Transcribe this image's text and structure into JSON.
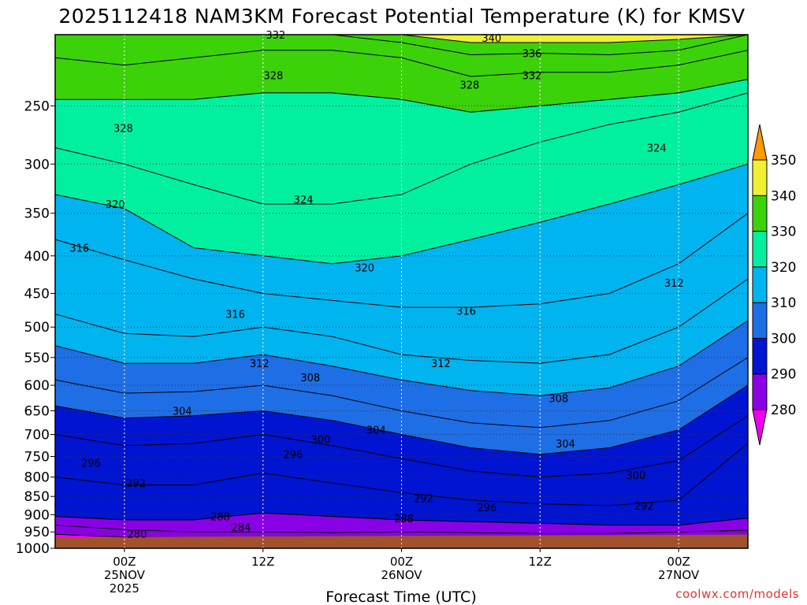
{
  "chart_data": {
    "type": "time-height contour",
    "title": "2025112418 NAM3KM Forecast Potential Temperature (K) for KMSV",
    "xlabel": "Forecast Time (UTC)",
    "ylabel": "",
    "y_scale": "log-pressure (inverted)",
    "y_ticks": [
      250,
      300,
      350,
      400,
      450,
      500,
      550,
      600,
      650,
      700,
      750,
      800,
      850,
      900,
      950,
      1000
    ],
    "ylim": [
      1000,
      200
    ],
    "x_range_hours": [
      -6,
      54
    ],
    "x_ticks": [
      {
        "hour": 0,
        "line1": "00Z",
        "line2": "25NOV",
        "line3": "2025"
      },
      {
        "hour": 12,
        "line1": "12Z",
        "line2": "",
        "line3": ""
      },
      {
        "hour": 24,
        "line1": "00Z",
        "line2": "26NOV",
        "line3": ""
      },
      {
        "hour": 36,
        "line1": "12Z",
        "line2": "",
        "line3": ""
      },
      {
        "hour": 48,
        "line1": "00Z",
        "line2": "27NOV",
        "line3": ""
      }
    ],
    "grid": true,
    "colorbar": {
      "placement": "right",
      "levels": [
        280,
        290,
        300,
        310,
        320,
        330,
        340,
        350
      ],
      "colors": [
        "#8a00e6",
        "#0014d2",
        "#1e6ee6",
        "#00b4f0",
        "#00f0a0",
        "#3cd20a",
        "#f0f032"
      ],
      "under_color": "#f000f0",
      "over_color": "#ff9900"
    },
    "ground_color": "#a0522d",
    "x_hours": [
      -6,
      0,
      6,
      12,
      18,
      24,
      30,
      36,
      42,
      48,
      54
    ],
    "isentropes_hpa": [
      {
        "theta": 280,
        "p": [
          957,
          965,
          966,
          966,
          967,
          966,
          966,
          966,
          966,
          966,
          966
        ]
      },
      {
        "theta": 284,
        "p": [
          930,
          943,
          950,
          950,
          952,
          950,
          952,
          955,
          955,
          950,
          945
        ]
      },
      {
        "theta": 288,
        "p": [
          905,
          915,
          915,
          895,
          905,
          915,
          920,
          925,
          930,
          930,
          910
        ]
      },
      {
        "theta": 292,
        "p": [
          800,
          820,
          820,
          790,
          815,
          840,
          860,
          870,
          875,
          860,
          720
        ]
      },
      {
        "theta": 296,
        "p": [
          700,
          725,
          720,
          700,
          725,
          755,
          785,
          800,
          790,
          760,
          660
        ]
      },
      {
        "theta": 300,
        "p": [
          640,
          665,
          660,
          650,
          670,
          700,
          730,
          745,
          730,
          690,
          600
        ]
      },
      {
        "theta": 304,
        "p": [
          590,
          615,
          612,
          600,
          620,
          650,
          675,
          685,
          670,
          630,
          550
        ]
      },
      {
        "theta": 308,
        "p": [
          530,
          560,
          560,
          545,
          565,
          590,
          610,
          620,
          605,
          565,
          490
        ]
      },
      {
        "theta": 312,
        "p": [
          480,
          510,
          515,
          500,
          515,
          545,
          555,
          560,
          545,
          500,
          430
        ]
      },
      {
        "theta": 316,
        "p": [
          380,
          405,
          430,
          450,
          460,
          470,
          470,
          465,
          450,
          410,
          350
        ]
      },
      {
        "theta": 320,
        "p": [
          330,
          345,
          390,
          400,
          410,
          400,
          380,
          360,
          340,
          320,
          300
        ]
      },
      {
        "theta": 324,
        "p": [
          285,
          300,
          320,
          340,
          340,
          330,
          300,
          280,
          265,
          255,
          240
        ]
      },
      {
        "theta": 328,
        "p": [
          245,
          245,
          245,
          240,
          240,
          245,
          255,
          250,
          245,
          240,
          230
        ]
      },
      {
        "theta": 332,
        "p": [
          215,
          220,
          215,
          210,
          210,
          215,
          228,
          225,
          225,
          220,
          210
        ]
      },
      {
        "theta": 336,
        "p": [
          200,
          200,
          200,
          200,
          200,
          205,
          213,
          212,
          213,
          210,
          200
        ]
      },
      {
        "theta": 340,
        "p": [
          200,
          200,
          200,
          200,
          200,
          200,
          205,
          205,
          205,
          203,
          200
        ]
      }
    ],
    "contour_labels": [
      {
        "text": "332",
        "hour": 13.1,
        "p": 200
      },
      {
        "text": "340",
        "hour": 31.8,
        "p": 202
      },
      {
        "text": "336",
        "hour": 35.3,
        "p": 212
      },
      {
        "text": "332",
        "hour": 35.3,
        "p": 227
      },
      {
        "text": "328",
        "hour": 12.9,
        "p": 227
      },
      {
        "text": "328",
        "hour": 29.9,
        "p": 234
      },
      {
        "text": "328",
        "hour": -0.1,
        "p": 268
      },
      {
        "text": "324",
        "hour": 46.1,
        "p": 285
      },
      {
        "text": "324",
        "hour": 15.5,
        "p": 335
      },
      {
        "text": "320",
        "hour": -0.8,
        "p": 340
      },
      {
        "text": "316",
        "hour": -3.9,
        "p": 390
      },
      {
        "text": "320",
        "hour": 20.8,
        "p": 415
      },
      {
        "text": "312",
        "hour": 47.6,
        "p": 435
      },
      {
        "text": "316",
        "hour": 9.6,
        "p": 480
      },
      {
        "text": "316",
        "hour": 29.6,
        "p": 475
      },
      {
        "text": "312",
        "hour": 11.7,
        "p": 560
      },
      {
        "text": "312",
        "hour": 27.4,
        "p": 560
      },
      {
        "text": "308",
        "hour": 16.1,
        "p": 585
      },
      {
        "text": "308",
        "hour": 37.6,
        "p": 625
      },
      {
        "text": "304",
        "hour": 5.0,
        "p": 650
      },
      {
        "text": "304",
        "hour": 21.8,
        "p": 690
      },
      {
        "text": "304",
        "hour": 38.2,
        "p": 720
      },
      {
        "text": "300",
        "hour": 17.0,
        "p": 710
      },
      {
        "text": "296",
        "hour": 14.6,
        "p": 745
      },
      {
        "text": "296",
        "hour": -2.9,
        "p": 765
      },
      {
        "text": "300",
        "hour": 44.3,
        "p": 795
      },
      {
        "text": "292",
        "hour": 1.0,
        "p": 815
      },
      {
        "text": "292",
        "hour": 25.9,
        "p": 855
      },
      {
        "text": "296",
        "hour": 31.4,
        "p": 880
      },
      {
        "text": "292",
        "hour": 45.0,
        "p": 875
      },
      {
        "text": "288",
        "hour": 8.3,
        "p": 905
      },
      {
        "text": "288",
        "hour": 24.2,
        "p": 910
      },
      {
        "text": "284",
        "hour": 10.1,
        "p": 935
      },
      {
        "text": "280",
        "hour": 1.1,
        "p": 955
      }
    ]
  },
  "credit": "coolwx.com/models"
}
